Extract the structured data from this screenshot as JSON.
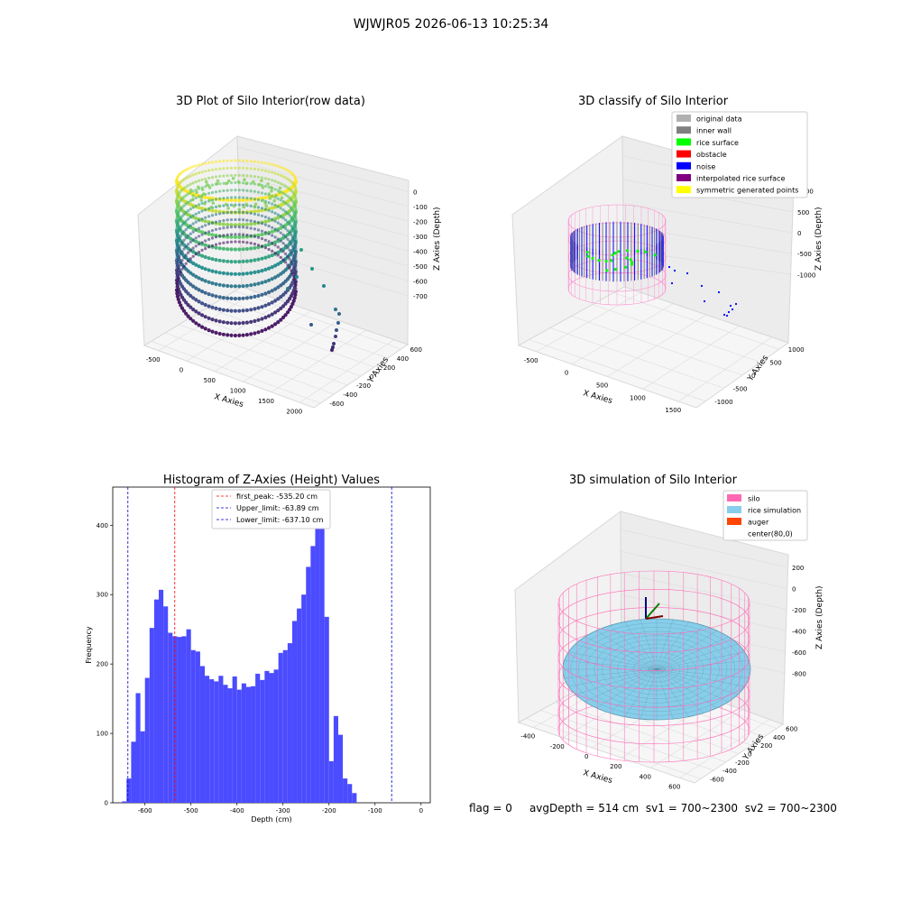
{
  "figure_title": "WJWJR05 2026-06-13 10:25:34",
  "status_line": {
    "flag": "flag = 0",
    "avg_depth": "avgDepth = 514 cm",
    "sv1": "sv1 = 700~2300",
    "sv2": "sv2 = 700~2300"
  },
  "chart_data": [
    {
      "type": "scatter",
      "title": "3D Plot of Silo Interior(row data)",
      "xlabel": "X Axies",
      "ylabel": "Y Axies",
      "zlabel": "Z Axies (Depth)",
      "x_ticks": [
        "-500",
        "0",
        "500",
        "1000",
        "1500",
        "2000"
      ],
      "y_ticks": [
        "-600",
        "-400",
        "-200",
        "0",
        "200",
        "400",
        "600"
      ],
      "z_ticks": [
        "0",
        "-100",
        "-200",
        "-300",
        "-400",
        "-500",
        "-600",
        "-700"
      ],
      "xlim": [
        -600,
        2000
      ],
      "ylim": [
        -650,
        650
      ],
      "zlim": [
        -750,
        20
      ],
      "colormap": "viridis"
    },
    {
      "type": "scatter",
      "title": "3D classify of Silo Interior",
      "xlabel": "X Axies",
      "ylabel": "Y Axies",
      "zlabel": "Z Axies (Depth)",
      "x_ticks": [
        "-500",
        "0",
        "500",
        "1000",
        "1500"
      ],
      "y_ticks": [
        "-1000",
        "-500",
        "0",
        "500",
        "1000"
      ],
      "z_ticks": [
        "1000",
        "500",
        "0",
        "-500",
        "-1000"
      ],
      "legend": [
        {
          "label": "original data",
          "color": "#b0b0b0"
        },
        {
          "label": "inner wall",
          "color": "#808080"
        },
        {
          "label": "rice surface",
          "color": "#00ff00"
        },
        {
          "label": "obstacle",
          "color": "#ff0000"
        },
        {
          "label": "noise",
          "color": "#0000ff"
        },
        {
          "label": "interpolated rice surface",
          "color": "#800080"
        },
        {
          "label": "symmetric generated points",
          "color": "#ffff00"
        }
      ],
      "legend_loc": "upper right"
    },
    {
      "type": "bar",
      "title": "Histogram of Z-Axies (Height) Values",
      "xlabel": "Depth (cm)",
      "ylabel": "Frequency",
      "bin_start": -650,
      "bin_width": 10,
      "values": [
        2,
        35,
        88,
        158,
        103,
        180,
        252,
        293,
        307,
        283,
        245,
        240,
        239,
        240,
        250,
        220,
        218,
        197,
        183,
        178,
        175,
        183,
        170,
        165,
        182,
        163,
        172,
        167,
        168,
        186,
        177,
        190,
        187,
        192,
        216,
        220,
        230,
        262,
        280,
        300,
        340,
        370,
        400,
        431,
        268,
        60,
        125,
        98,
        35,
        27,
        14
      ],
      "xlim": [
        -670,
        20
      ],
      "ylim": [
        0,
        455
      ],
      "x_ticks": [
        -600,
        -500,
        -400,
        -300,
        -200,
        -100,
        0
      ],
      "y_ticks": [
        0,
        100,
        200,
        300,
        400
      ],
      "bar_color": "#4b4bff",
      "vlines": [
        {
          "label": "first_peak: -535.20 cm",
          "x": -535.2,
          "color": "#ff0000"
        },
        {
          "label": "Upper_limit: -63.89 cm",
          "x": -63.89,
          "color": "#0000cc"
        },
        {
          "label": "Lower_limit: -637.10 cm",
          "x": -637.1,
          "color": "#0000cc"
        }
      ],
      "legend_loc": "upper center"
    },
    {
      "type": "surface",
      "title": "3D simulation of Silo Interior",
      "xlabel": "X Axies",
      "ylabel": "Y Axies",
      "zlabel": "Z Axies (Depth)",
      "x_ticks": [
        "-400",
        "-200",
        "0",
        "200",
        "400",
        "600"
      ],
      "y_ticks": [
        "-600",
        "-400",
        "-200",
        "0",
        "200",
        "400",
        "600"
      ],
      "z_ticks": [
        "200",
        "0",
        "-200",
        "-400",
        "-600",
        "-800"
      ],
      "legend": [
        {
          "label": "silo",
          "color": "#ff69b4"
        },
        {
          "label": "rice simulation",
          "color": "#87ceeb"
        },
        {
          "label": "auger",
          "color": "#ff4500"
        },
        {
          "label": "center(80,0)",
          "color": ""
        }
      ],
      "legend_loc": "upper right"
    }
  ]
}
